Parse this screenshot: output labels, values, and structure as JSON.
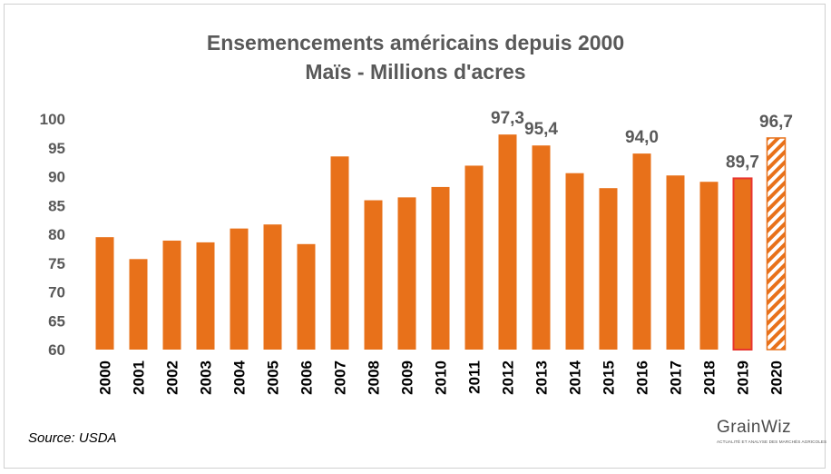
{
  "chart_data": {
    "type": "bar",
    "title": "Ensemencements américains depuis 2000",
    "subtitle": "Maïs - Millions d'acres",
    "categories": [
      "2000",
      "2001",
      "2002",
      "2003",
      "2004",
      "2005",
      "2006",
      "2007",
      "2008",
      "2009",
      "2010",
      "2011",
      "2012",
      "2013",
      "2014",
      "2015",
      "2016",
      "2017",
      "2018",
      "2019",
      "2020"
    ],
    "values": [
      79.5,
      75.7,
      78.9,
      78.6,
      81.0,
      81.7,
      78.3,
      93.5,
      85.9,
      86.4,
      88.2,
      91.9,
      97.3,
      95.4,
      90.6,
      88.0,
      94.0,
      90.2,
      89.1,
      89.7,
      96.7
    ],
    "data_labels": {
      "12": "97,3",
      "13": "95,4",
      "16": "94,0",
      "19": "89,7",
      "20": "96,7"
    },
    "highlighted": {
      "19": "outline-red",
      "20": "hatched"
    },
    "ylim": [
      60,
      100
    ],
    "yticks": [
      60,
      65,
      70,
      75,
      80,
      85,
      90,
      95,
      100
    ],
    "grid": false,
    "colors": {
      "bar": "#E8711A",
      "highlight_border": "#E8352E",
      "text": "#595959"
    }
  },
  "source": "Source: USDA",
  "logo": {
    "text": "GrainWiz",
    "tagline": "ACTUALITÉ ET ANALYSE DES MARCHÉS AGRICOLES"
  }
}
